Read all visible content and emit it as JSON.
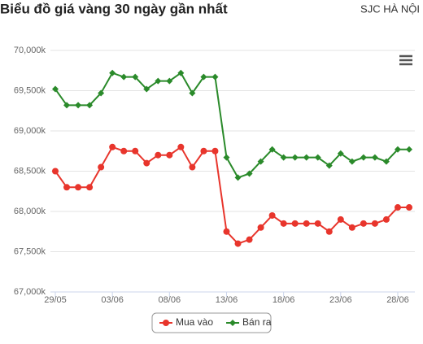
{
  "chart_data": {
    "type": "line",
    "title": "Biểu đồ giá vàng 30 ngày gần nhất",
    "subtitle": "SJC HÀ NỘI",
    "categories": [
      "29/05",
      null,
      null,
      null,
      null,
      "03/06",
      null,
      null,
      null,
      null,
      "08/06",
      null,
      null,
      null,
      null,
      "13/06",
      null,
      null,
      null,
      null,
      "18/06",
      null,
      null,
      null,
      null,
      "23/06",
      null,
      null,
      null,
      null,
      "28/06",
      null
    ],
    "series": [
      {
        "name": "Mua vào",
        "color": "#e8352c",
        "marker": "circle",
        "values": [
          68500,
          68300,
          68300,
          68300,
          68550,
          68800,
          68750,
          68750,
          68600,
          68700,
          68700,
          68800,
          68550,
          68750,
          68750,
          67750,
          67600,
          67650,
          67800,
          67950,
          67850,
          67850,
          67850,
          67850,
          67750,
          67900,
          67800,
          67850,
          67850,
          67900,
          68050,
          68050
        ]
      },
      {
        "name": "Bán ra",
        "color": "#2a8a2a",
        "marker": "diamond",
        "values": [
          69520,
          69320,
          69320,
          69320,
          69470,
          69720,
          69670,
          69670,
          69520,
          69620,
          69620,
          69720,
          69470,
          69670,
          69670,
          68670,
          68420,
          68470,
          68620,
          68770,
          68670,
          68670,
          68670,
          68670,
          68570,
          68720,
          68620,
          68670,
          68670,
          68620,
          68770,
          68770
        ]
      }
    ],
    "ylim": [
      67000,
      70000
    ],
    "yticks": [
      {
        "value": 67000,
        "label": "67,000k"
      },
      {
        "value": 67500,
        "label": "67,500k"
      },
      {
        "value": 68000,
        "label": "68,000k"
      },
      {
        "value": 68500,
        "label": "68,500k"
      },
      {
        "value": 69000,
        "label": "69,000k"
      },
      {
        "value": 69500,
        "label": "69,500k"
      },
      {
        "value": 70000,
        "label": "70,000k"
      }
    ],
    "grid": true,
    "legend": "bottom"
  }
}
